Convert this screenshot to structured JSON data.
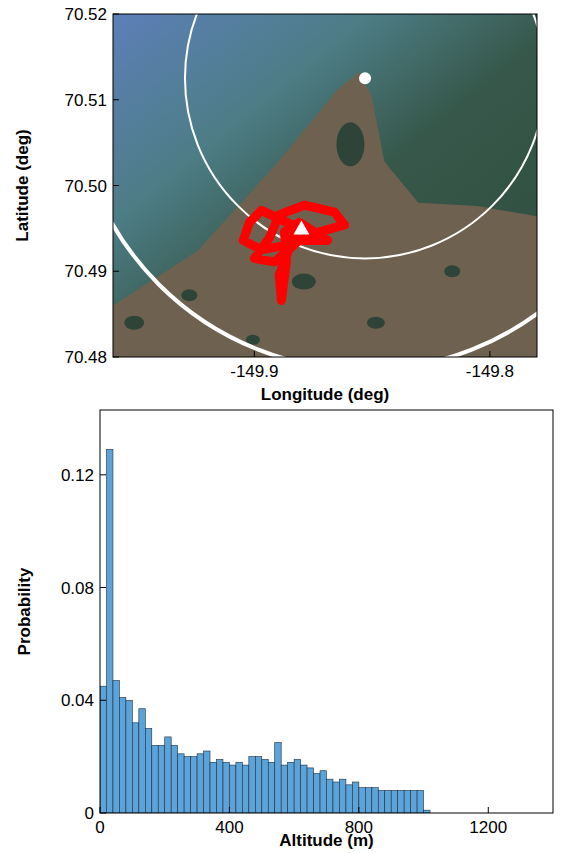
{
  "chart_data": [
    {
      "type": "map",
      "x_label": "Longitude (deg)",
      "y_label": "Latitude (deg)",
      "xlim": [
        -149.96,
        -149.78
      ],
      "ylim": [
        70.48,
        70.52
      ],
      "xticks": [
        -149.9,
        -149.8
      ],
      "yticks": [
        70.48,
        70.49,
        {
          "value": 70.5,
          "label": "70.50"
        },
        70.51,
        70.52
      ],
      "series": [
        {
          "type": "line",
          "color": "#ff0000",
          "x": [
            -149.8809,
            -149.897,
            -149.9021,
            -149.9047,
            -149.897,
            -149.8851,
            -149.8723,
            -149.8617,
            -149.866,
            -149.8787,
            -149.8894,
            -149.8936,
            -149.9,
            -149.8915,
            -149.8809,
            -149.8689,
            -149.8809,
            -149.8872,
            -149.8864,
            -149.8885,
            -149.8894,
            -149.883
          ],
          "y": [
            70.495,
            70.4971,
            70.4957,
            70.4936,
            70.4925,
            70.4931,
            70.4946,
            70.4954,
            70.4969,
            70.4977,
            70.4966,
            70.4939,
            70.4915,
            70.4911,
            70.4936,
            70.4936,
            70.4957,
            70.4946,
            70.4911,
            70.4866,
            70.4896,
            70.4942
          ]
        },
        {
          "type": "scatter",
          "marker": "triangle",
          "color": "#ffffff",
          "x": [
            -149.88
          ],
          "y": [
            70.495
          ]
        },
        {
          "type": "scatter",
          "marker": "circle",
          "color": "#ffffff",
          "x": [
            -149.853
          ],
          "y": [
            70.5125
          ]
        }
      ],
      "circles": {
        "x": [
          -149.853,
          -149.853
        ],
        "y": [
          70.5125,
          70.5125
        ],
        "r": [
          0.021,
          0.034
        ],
        "color": "#ffffff"
      }
    },
    {
      "type": "histogram",
      "x_label": "Altitude (m)",
      "y_label": "Probability",
      "color": "#5ba3d9",
      "xlim": [
        0,
        1400
      ],
      "ylim": [
        0,
        0.143
      ],
      "xticks": [
        0,
        400,
        800,
        1200
      ],
      "yticks": [
        0,
        0.04,
        0.08,
        0.12
      ],
      "bins": [
        0,
        20,
        40,
        60,
        80,
        100,
        120,
        140,
        160,
        180,
        200,
        220,
        240,
        260,
        280,
        300,
        320,
        340,
        360,
        380,
        400,
        420,
        440,
        460,
        480,
        500,
        520,
        540,
        560,
        580,
        600,
        620,
        640,
        660,
        680,
        700,
        720,
        740,
        760,
        780,
        800,
        820,
        840,
        860,
        880,
        900,
        920,
        940,
        960,
        980,
        1000,
        1020
      ],
      "values": [
        0.045,
        0.129,
        0.047,
        0.041,
        0.04,
        0.032,
        0.037,
        0.03,
        0.024,
        0.024,
        0.027,
        0.024,
        0.021,
        0.02,
        0.02,
        0.021,
        0.022,
        0.018,
        0.019,
        0.018,
        0.017,
        0.018,
        0.017,
        0.02,
        0.02,
        0.019,
        0.018,
        0.025,
        0.017,
        0.018,
        0.019,
        0.017,
        0.016,
        0.014,
        0.015,
        0.012,
        0.011,
        0.012,
        0.01,
        0.011,
        0.009,
        0.009,
        0.009,
        0.008,
        0.008,
        0.008,
        0.008,
        0.008,
        0.008,
        0.008,
        0.001
      ]
    }
  ]
}
